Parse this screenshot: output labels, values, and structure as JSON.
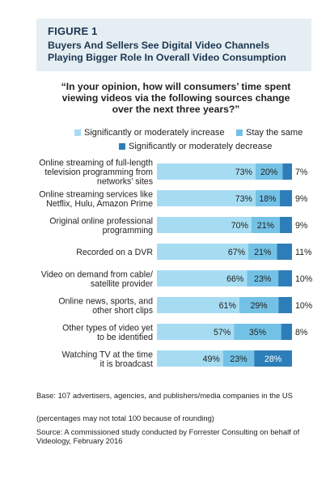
{
  "figure_label": "FIGURE 1",
  "figure_title_lines": [
    "Buyers And Sellers See Digital Video Channels",
    "Playing Bigger Role In Overall Video Consumption"
  ],
  "question_lines": [
    "“In your opinion, how will consumers’ time spent",
    "viewing videos via the following sources change",
    "over the next three years?”"
  ],
  "colors": {
    "increase": "#a6dcf2",
    "same": "#73c2e6",
    "decrease": "#2d7eb8",
    "header_bg": "#e5eef3",
    "title": "#1a3650"
  },
  "chart_data": {
    "type": "bar",
    "orientation": "horizontal",
    "stacked": true,
    "categories": [
      [
        "Online streaming of full-length",
        "television programming from",
        "networks’ sites"
      ],
      [
        "Online streaming services like",
        "Netflix, Hulu, Amazon Prime"
      ],
      [
        "Original online professional",
        "programming"
      ],
      [
        "Recorded on a DVR"
      ],
      [
        "Video on demand from cable/",
        "satellite provider"
      ],
      [
        "Online news, sports, and",
        "other short clips"
      ],
      [
        "Other types of video yet",
        "to be identified"
      ],
      [
        "Watching TV at the time",
        "it is broadcast"
      ]
    ],
    "series": [
      {
        "name": "Significantly or moderately increase",
        "values": [
          73,
          73,
          70,
          67,
          66,
          61,
          57,
          49
        ]
      },
      {
        "name": "Stay the same",
        "values": [
          20,
          18,
          21,
          21,
          23,
          29,
          35,
          23
        ]
      },
      {
        "name": "Significantly or moderately decrease",
        "values": [
          7,
          9,
          9,
          11,
          10,
          10,
          8,
          28
        ]
      }
    ],
    "legend_position": "top",
    "xlim": [
      0,
      100
    ],
    "grid": false
  },
  "footer": {
    "base": "Base: 107 advertisers, agencies, and publishers/media companies in the US",
    "note": "(percentages may not total 100 because of rounding)",
    "source": "Source: A commissioned study conducted by Forrester Consulting on behalf of Videology, February 2016"
  }
}
